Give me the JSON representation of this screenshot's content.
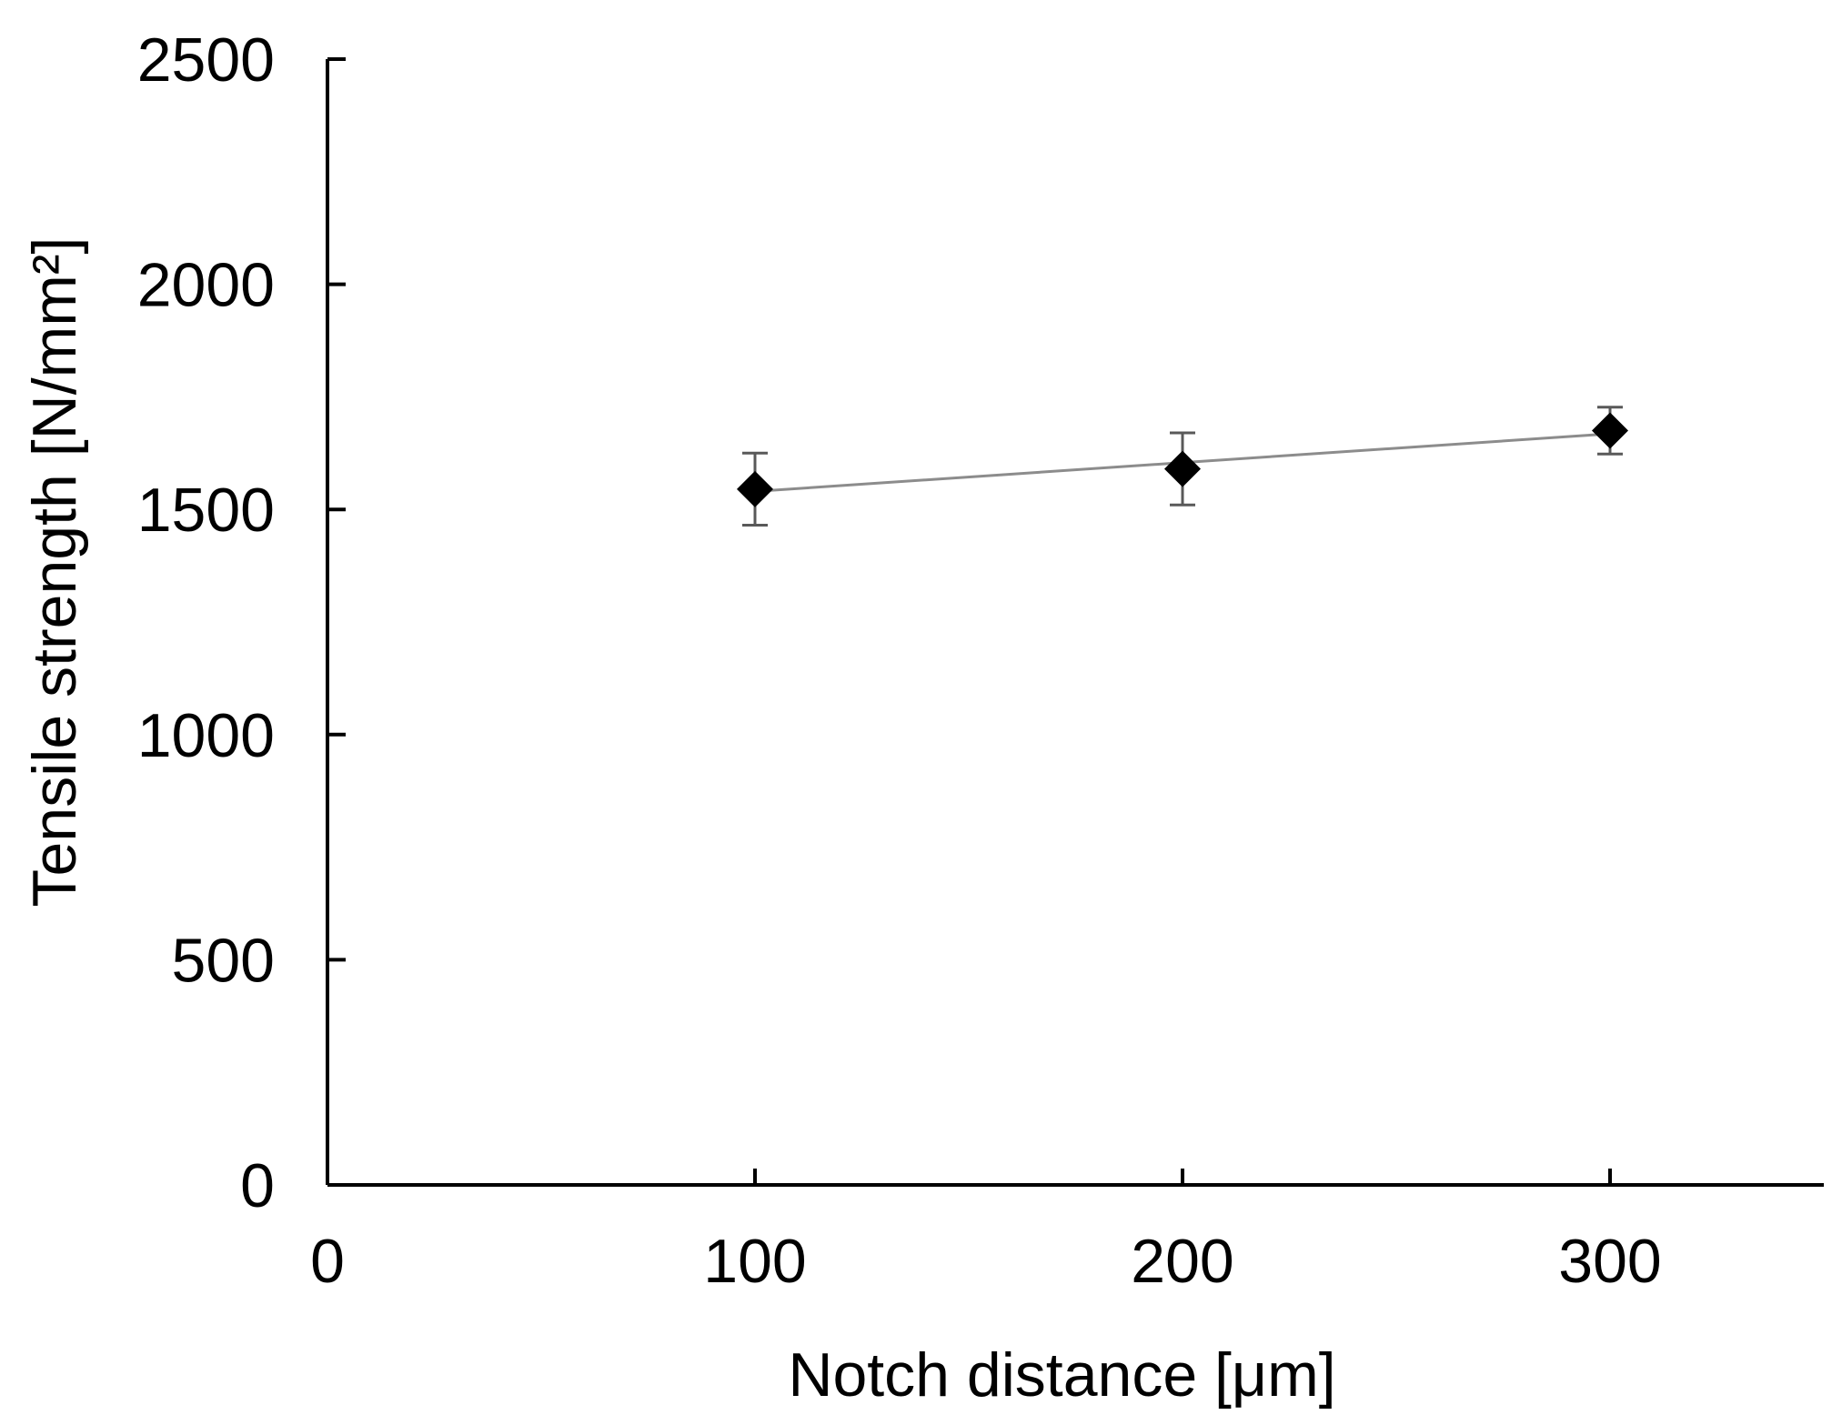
{
  "chart_data": {
    "type": "scatter",
    "title": "",
    "xlabel": "Notch distance [μm]",
    "ylabel": "Tensile strength [N/mm²]",
    "xlim": [
      0,
      350
    ],
    "ylim": [
      0,
      2500
    ],
    "x_ticks": [
      0,
      100,
      200,
      300
    ],
    "y_ticks": [
      0,
      500,
      1000,
      1500,
      2000,
      2500
    ],
    "grid": false,
    "legend": "none",
    "series": [
      {
        "x": [
          100,
          200,
          300
        ],
        "y": [
          1545,
          1590,
          1675
        ],
        "error": [
          80,
          80,
          52
        ],
        "marker": "diamond",
        "marker_color": "#000000",
        "error_color": "#595959",
        "trendline": {
          "type": "linear",
          "color": "#8c8c8c",
          "x": [
            100,
            300
          ],
          "y": [
            1540,
            1668
          ]
        }
      }
    ]
  }
}
